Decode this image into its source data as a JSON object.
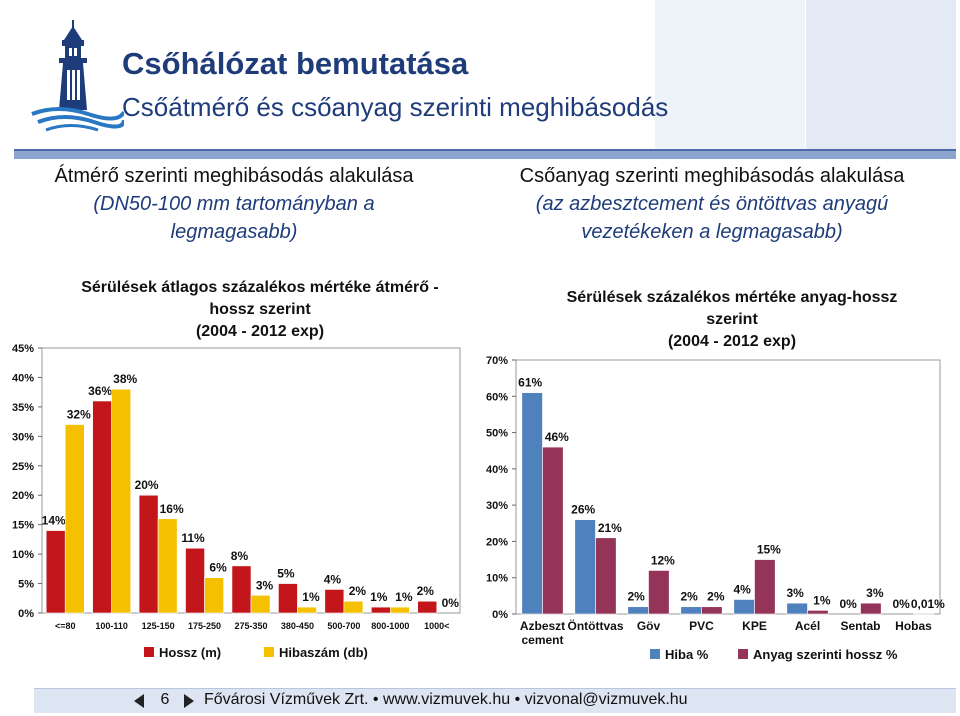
{
  "header": {
    "title": "Csőhálózat bemutatása",
    "subtitle": "Csőátmérő és csőanyag szerinti meghibásodás"
  },
  "left_caption": {
    "line1": "Átmérő szerinti meghibásodás alakulása",
    "line2": "(DN50-100 mm tartományban a",
    "line3": "legmagasabb)"
  },
  "right_caption": {
    "line1": "Csőanyag szerinti meghibásodás alakulása",
    "line2": "(az azbesztcement és öntöttvas anyagú",
    "line3": "vezetékeken a legmagasabb)"
  },
  "footer": {
    "page": "6",
    "text": "Fővárosi Vízművek Zrt. • www.vizmuvek.hu • vizvonal@vizmuvek.hu"
  },
  "colors": {
    "title": "#1f3c7a",
    "chart1_series1": "#c2161b",
    "chart1_series2": "#f5c000",
    "chart2_series1": "#4f81bd",
    "chart2_series2": "#943459",
    "rule": "#8da4cf"
  },
  "chart_data": [
    {
      "type": "bar",
      "title_lines": [
        "Sérülések átlagos százalékos mértéke átmérő -",
        "hossz szerint",
        "(2004 - 2012 exp)"
      ],
      "categories": [
        "<=80",
        "100-110",
        "125-150",
        "175-250",
        "275-350",
        "380-450",
        "500-700",
        "800-1000",
        "1000<"
      ],
      "series": [
        {
          "name": "Hossz (m)",
          "values": [
            14,
            36,
            20,
            11,
            8,
            5,
            4,
            1,
            2
          ],
          "labels": [
            "14%",
            "36%",
            "20%",
            "11%",
            "8%",
            "5%",
            "4%",
            "1%",
            "2%"
          ]
        },
        {
          "name": "Hibaszám (db)",
          "values": [
            32,
            38,
            16,
            6,
            3,
            1,
            2,
            1,
            0
          ],
          "labels": [
            "32%",
            "38%",
            "16%",
            "6%",
            "3%",
            "1%",
            "2%",
            "1%",
            "0%"
          ]
        }
      ],
      "yticks": [
        "0%",
        "5%",
        "10%",
        "15%",
        "20%",
        "25%",
        "30%",
        "35%",
        "40%",
        "45%"
      ],
      "ylim": [
        0,
        45
      ],
      "grid": false,
      "legend": "bottom"
    },
    {
      "type": "bar",
      "title_lines": [
        "Sérülések százalékos mértéke anyag-hossz",
        "szerint",
        "(2004 - 2012 exp)"
      ],
      "categories": [
        [
          "Azbeszt",
          "cement"
        ],
        [
          "Öntöttvas"
        ],
        [
          "Göv"
        ],
        [
          "PVC"
        ],
        [
          "KPE"
        ],
        [
          "Acél"
        ],
        [
          "Sentab"
        ],
        [
          "Hobas"
        ]
      ],
      "series": [
        {
          "name": "Hiba %",
          "values": [
            61,
            26,
            2,
            2,
            4,
            3,
            0,
            0
          ],
          "labels": [
            "61%",
            "26%",
            "2%",
            "2%",
            "4%",
            "3%",
            "0%",
            "0%"
          ]
        },
        {
          "name": "Anyag szerinti hossz %",
          "values": [
            46,
            21,
            12,
            2,
            15,
            1,
            3,
            0.01
          ],
          "labels": [
            "46%",
            "21%",
            "12%",
            "2%",
            "15%",
            "1%",
            "3%",
            "0,01%"
          ]
        }
      ],
      "yticks": [
        "0%",
        "10%",
        "20%",
        "30%",
        "40%",
        "50%",
        "60%",
        "70%"
      ],
      "ylim": [
        0,
        70
      ],
      "grid": false,
      "legend": "bottom"
    }
  ]
}
